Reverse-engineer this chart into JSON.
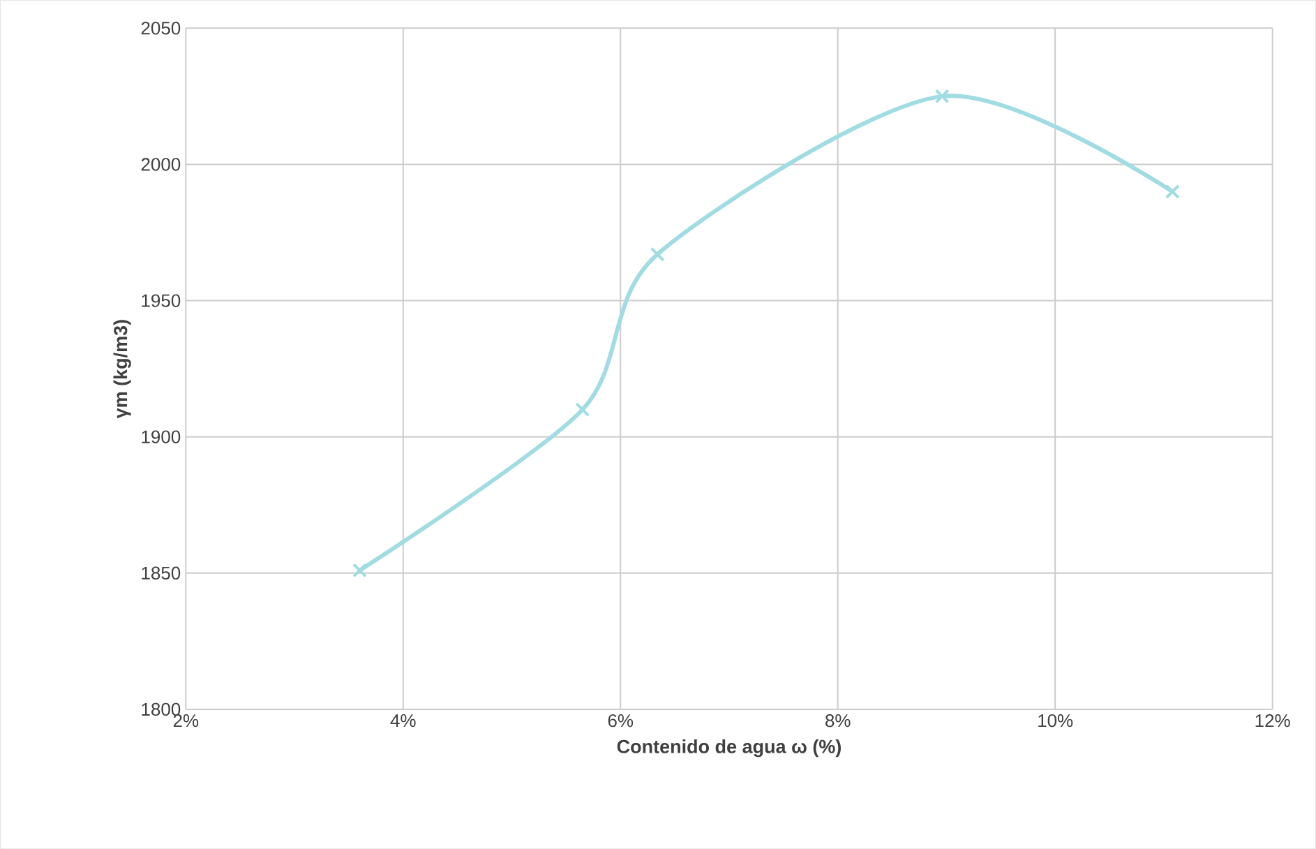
{
  "chart_data": {
    "type": "line",
    "xlabel": "Contenido de agua ω (%)",
    "ylabel": "γm (kg/m3)",
    "x": [
      3.6,
      5.65,
      6.34,
      8.96,
      11.08
    ],
    "series": [
      {
        "color": "#a0dce2",
        "values": [
          1851,
          1910,
          1967,
          2025,
          1990
        ]
      }
    ],
    "xlim": [
      2,
      12
    ],
    "xticks": [
      {
        "value": 2,
        "label": "2%"
      },
      {
        "value": 4,
        "label": "4%"
      },
      {
        "value": 6,
        "label": "6%"
      },
      {
        "value": 8,
        "label": "8%"
      },
      {
        "value": 10,
        "label": "10%"
      },
      {
        "value": 12,
        "label": "12%"
      }
    ],
    "ylim": [
      1800,
      2050
    ],
    "yticks": [
      1800,
      1850,
      1900,
      1950,
      2000,
      2050
    ],
    "grid": true,
    "marker": "cross",
    "line_style": "solid"
  }
}
